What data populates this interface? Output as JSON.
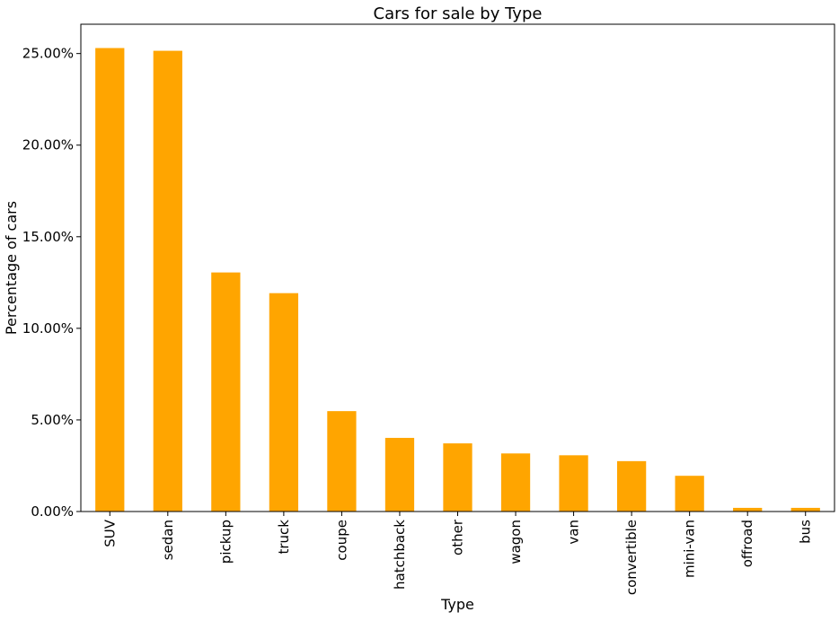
{
  "chart_data": {
    "type": "bar",
    "title": "Cars for sale by Type",
    "xlabel": "Type",
    "ylabel": "Percentage of cars",
    "categories": [
      "SUV",
      "sedan",
      "pickup",
      "truck",
      "coupe",
      "hatchback",
      "other",
      "wagon",
      "van",
      "convertible",
      "mini-van",
      "offroad",
      "bus"
    ],
    "values": [
      25.3,
      25.15,
      13.05,
      11.92,
      5.48,
      4.02,
      3.72,
      3.17,
      3.07,
      2.75,
      1.95,
      0.2,
      0.2
    ],
    "ylim": [
      0,
      26.6
    ],
    "yticks": [
      0,
      5,
      10,
      15,
      20,
      25
    ],
    "ytick_labels": [
      "0.00%",
      "5.00%",
      "10.00%",
      "15.00%",
      "20.00%",
      "25.00%"
    ],
    "bar_color": "#ffa500",
    "grid": false,
    "legend": "none"
  }
}
